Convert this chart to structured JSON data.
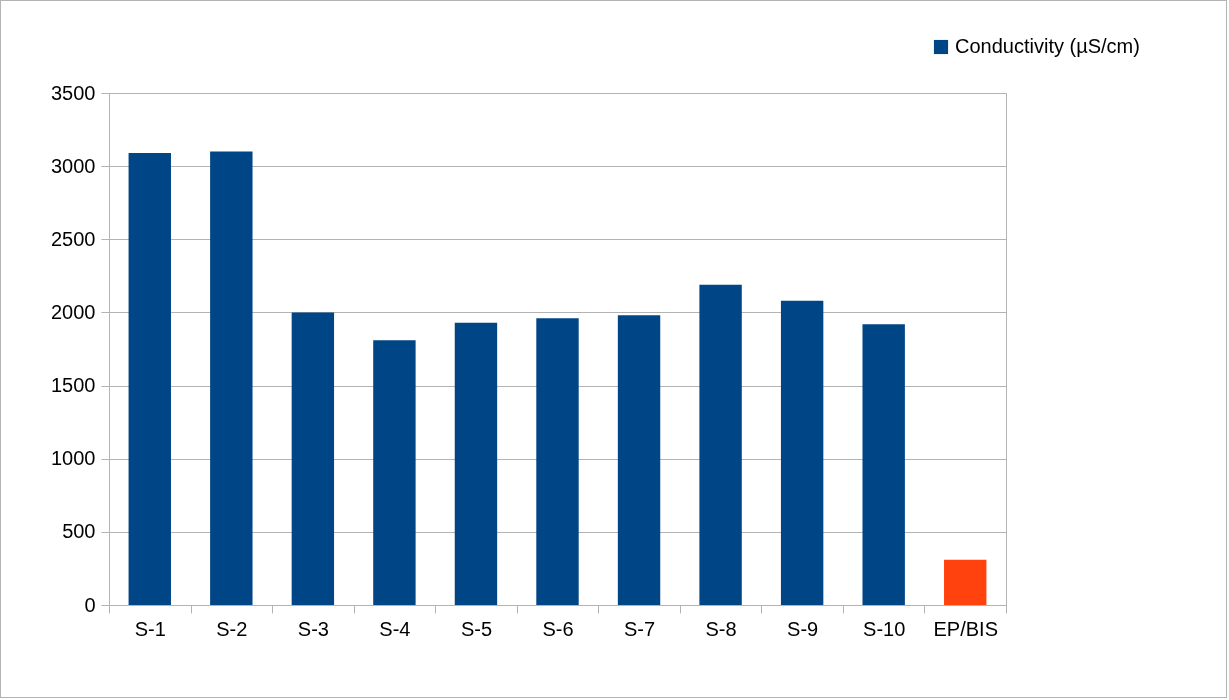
{
  "chart_data": {
    "type": "bar",
    "categories": [
      "S-1",
      "S-2",
      "S-3",
      "S-4",
      "S-5",
      "S-6",
      "S-7",
      "S-8",
      "S-9",
      "S-10",
      "EP/BIS"
    ],
    "series": [
      {
        "name": "Conductivity (µS/cm)",
        "color": "#004586",
        "colors": [
          "#004586",
          "#004586",
          "#004586",
          "#004586",
          "#004586",
          "#004586",
          "#004586",
          "#004586",
          "#004586",
          "#004586",
          "#ff420e"
        ],
        "values": [
          3090,
          3100,
          2000,
          1810,
          1930,
          1960,
          1980,
          2190,
          2080,
          1920,
          310
        ]
      }
    ],
    "ylim": [
      0,
      3500
    ],
    "yticks": [
      0,
      500,
      1000,
      1500,
      2000,
      2500,
      3000,
      3500
    ],
    "grid": "y",
    "legend": "top right"
  }
}
